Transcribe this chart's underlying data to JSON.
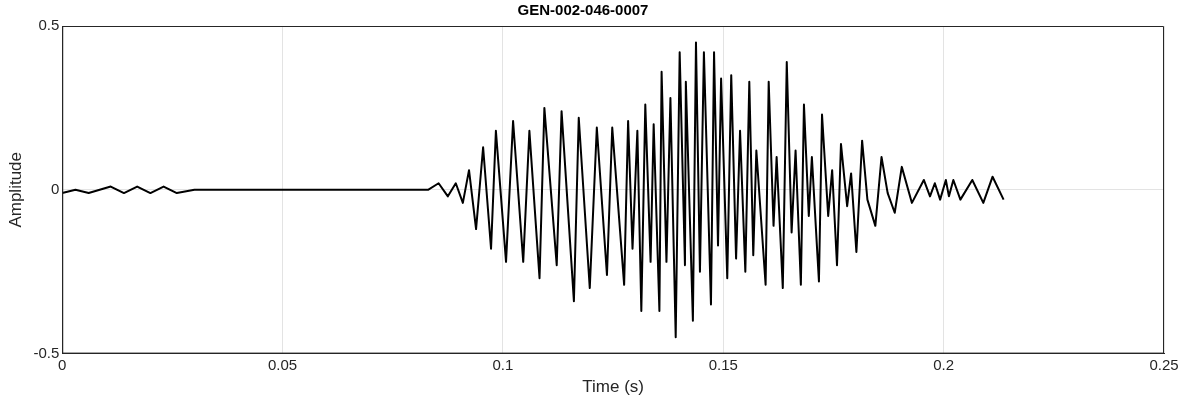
{
  "chart_data": {
    "type": "line",
    "title": "GEN-002-046-0007",
    "xlabel": "Time (s)",
    "ylabel": "Amplitude",
    "xlim": [
      0,
      0.25
    ],
    "xticks": [
      0,
      0.05,
      0.1,
      0.15,
      0.2,
      0.25
    ],
    "ylim": [
      -0.5,
      0.5
    ],
    "yticks": [
      -0.5,
      0,
      0.5
    ],
    "grid": true,
    "legend": false,
    "series": [
      {
        "color": "#000000",
        "x": [
          0,
          0.003,
          0.006,
          0.011,
          0.014,
          0.017,
          0.02,
          0.023,
          0.026,
          0.03,
          0.04,
          0.05,
          0.06,
          0.07,
          0.08,
          0.083,
          0.0854,
          0.0875,
          0.0893,
          0.0909,
          0.0923,
          0.0939,
          0.0955,
          0.0973,
          0.0984,
          0.1007,
          0.1023,
          0.1046,
          0.106,
          0.1083,
          0.1094,
          0.1122,
          0.1133,
          0.1161,
          0.1172,
          0.1197,
          0.1213,
          0.1236,
          0.1248,
          0.1275,
          0.1284,
          0.1294,
          0.1305,
          0.1314,
          0.1323,
          0.1335,
          0.1342,
          0.1355,
          0.136,
          0.1371,
          0.138,
          0.1392,
          0.1401,
          0.1413,
          0.1415,
          0.1431,
          0.1438,
          0.1447,
          0.1456,
          0.1472,
          0.1479,
          0.1488,
          0.1495,
          0.1509,
          0.1518,
          0.1529,
          0.1538,
          0.155,
          0.1559,
          0.1568,
          0.1575,
          0.1596,
          0.1603,
          0.1614,
          0.1621,
          0.1635,
          0.1644,
          0.1655,
          0.1664,
          0.1676,
          0.1683,
          0.1694,
          0.1701,
          0.1717,
          0.1724,
          0.1738,
          0.1747,
          0.1758,
          0.1767,
          0.1781,
          0.179,
          0.1802,
          0.1815,
          0.1827,
          0.1845,
          0.1859,
          0.1873,
          0.1889,
          0.1905,
          0.1928,
          0.1955,
          0.1969,
          0.198,
          0.1992,
          0.2005,
          0.2012,
          0.2022,
          0.2038,
          0.2065,
          0.209,
          0.2111,
          0.2136
        ],
        "values": [
          -0.01,
          0,
          -0.01,
          0.01,
          -0.01,
          0.01,
          -0.01,
          0.01,
          -0.01,
          0,
          0,
          0,
          0,
          0,
          0,
          0,
          0.02,
          -0.02,
          0.02,
          -0.04,
          0.06,
          -0.12,
          0.13,
          -0.18,
          0.18,
          -0.22,
          0.21,
          -0.22,
          0.18,
          -0.27,
          0.25,
          -0.23,
          0.24,
          -0.34,
          0.22,
          -0.3,
          0.19,
          -0.26,
          0.19,
          -0.29,
          0.21,
          -0.18,
          0.18,
          -0.37,
          0.26,
          -0.22,
          0.2,
          -0.37,
          0.36,
          -0.22,
          0.28,
          -0.45,
          0.42,
          -0.23,
          0.33,
          -0.4,
          0.45,
          -0.25,
          0.42,
          -0.35,
          0.42,
          -0.17,
          0.34,
          -0.27,
          0.35,
          -0.21,
          0.18,
          -0.25,
          0.33,
          -0.2,
          0.12,
          -0.29,
          0.33,
          -0.11,
          0.1,
          -0.3,
          0.39,
          -0.13,
          0.12,
          -0.29,
          0.26,
          -0.08,
          0.1,
          -0.28,
          0.23,
          -0.08,
          0.06,
          -0.23,
          0.14,
          -0.05,
          0.05,
          -0.19,
          0.15,
          -0.03,
          -0.11,
          0.1,
          -0.01,
          -0.07,
          0.07,
          -0.04,
          0.03,
          -0.02,
          0.02,
          -0.03,
          0.03,
          -0.02,
          0.03,
          -0.03,
          0.03,
          -0.04,
          0.04,
          -0.03
        ]
      }
    ]
  }
}
